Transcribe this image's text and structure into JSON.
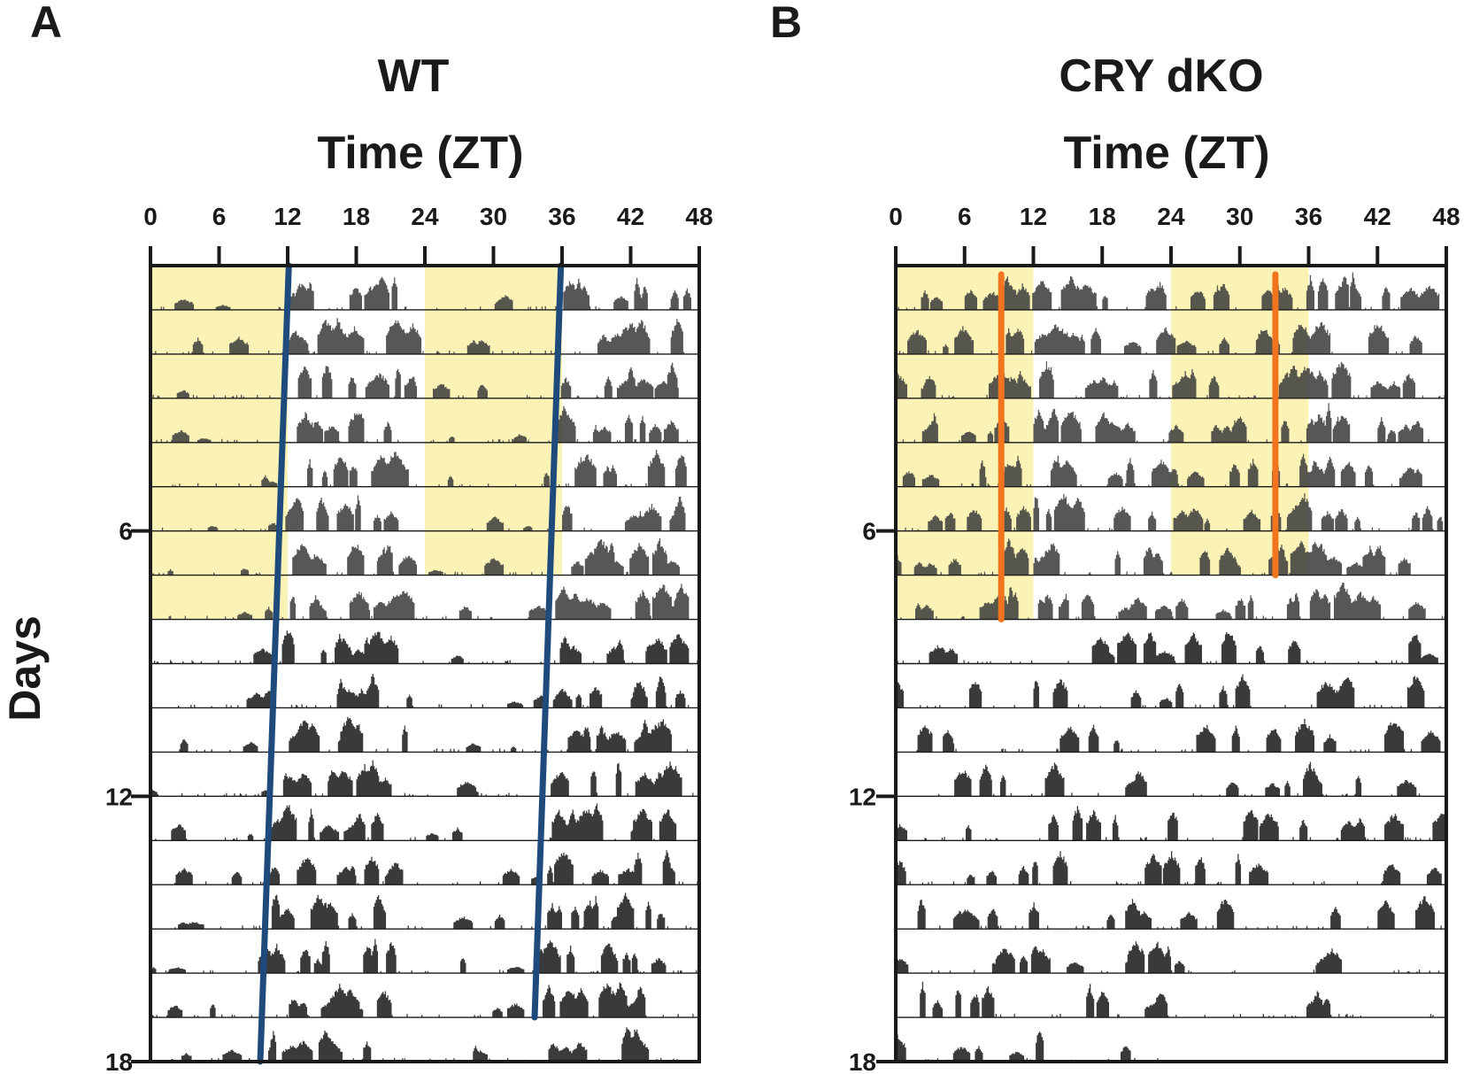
{
  "figure_labels": {
    "a": "A",
    "b": "B",
    "ylabel": "Days"
  },
  "colors": {
    "light_phase": "#fbf3b6",
    "activity": "#3a3a3a",
    "axis": "#1a1a1a",
    "wt_fit_line": "#1f4a7c",
    "dko_fit_line": "#f2741f"
  },
  "chart_data": [
    {
      "type": "actogram",
      "panel": "A",
      "title": "WT",
      "xlabel": "Time (ZT)",
      "ylabel": "Days",
      "x_ticks": [
        "0",
        "6",
        "12",
        "18",
        "24",
        "30",
        "36",
        "42",
        "48"
      ],
      "xlim": [
        0,
        48
      ],
      "y_ticks": [
        "6",
        "12",
        "18"
      ],
      "ylim": [
        0,
        18
      ],
      "rows": 18,
      "light_dark_entrainment_days": 8,
      "light_phase_zt": [
        [
          0,
          12
        ],
        [
          24,
          36
        ]
      ],
      "activity_onset_fit": [
        {
          "name": "onset-left",
          "points": [
            [
              12.1,
              0
            ],
            [
              9.6,
              18
            ]
          ]
        },
        {
          "name": "onset-right",
          "points": [
            [
              35.9,
              0
            ],
            [
              33.6,
              17
            ]
          ]
        }
      ]
    },
    {
      "type": "actogram",
      "panel": "B",
      "title": "CRY dKO",
      "xlabel": "Time (ZT)",
      "ylabel": "Days",
      "x_ticks": [
        "0",
        "6",
        "12",
        "18",
        "24",
        "30",
        "36",
        "42",
        "48"
      ],
      "xlim": [
        0,
        48
      ],
      "y_ticks": [
        "6",
        "12",
        "18"
      ],
      "ylim": [
        0,
        18
      ],
      "rows": 18,
      "last_row_xmax": 24,
      "light_dark_entrainment_days": 8,
      "light_phase_zt": [
        [
          0,
          12
        ],
        [
          24,
          36
        ]
      ],
      "activity_onset_fit": [
        {
          "name": "onset-left",
          "points": [
            [
              9.2,
              0.2
            ],
            [
              9.2,
              8
            ]
          ]
        },
        {
          "name": "onset-right",
          "points": [
            [
              33.1,
              0.2
            ],
            [
              33.1,
              7
            ]
          ]
        }
      ]
    }
  ]
}
